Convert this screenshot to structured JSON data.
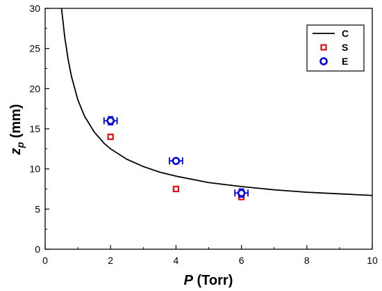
{
  "chart_data": {
    "type": "scatter",
    "xlabel_symbol": "P",
    "xlabel_unit": " (Torr)",
    "ylabel_symbol": "z",
    "ylabel_subscript": "p",
    "ylabel_unit": " (mm)",
    "xlim": [
      0,
      10
    ],
    "ylim": [
      0,
      30
    ],
    "x_ticks": [
      0,
      2,
      4,
      6,
      8,
      10
    ],
    "y_ticks": [
      0,
      5,
      10,
      15,
      20,
      25,
      30
    ],
    "x_tick_labels": [
      "0",
      "2",
      "4",
      "6",
      "8",
      "10"
    ],
    "y_tick_labels": [
      "0",
      "5",
      "10",
      "15",
      "20",
      "25",
      "30"
    ],
    "grid": false,
    "legend_position": "top-right",
    "series": [
      {
        "name": "C",
        "kind": "line",
        "color": "#000000",
        "x": [
          0.5,
          0.6,
          0.7,
          0.8,
          1.0,
          1.2,
          1.5,
          1.8,
          2.0,
          2.5,
          3.0,
          3.5,
          4.0,
          5.0,
          6.0,
          7.0,
          8.0,
          9.0,
          10.0
        ],
        "y": [
          30.0,
          26.4,
          23.7,
          21.6,
          18.6,
          16.6,
          14.6,
          13.2,
          12.5,
          11.2,
          10.3,
          9.6,
          9.1,
          8.3,
          7.8,
          7.4,
          7.1,
          6.9,
          6.7
        ]
      },
      {
        "name": "S",
        "kind": "square",
        "color": "#e01010",
        "x": [
          2,
          4,
          6
        ],
        "y": [
          14,
          7.5,
          6.5
        ]
      },
      {
        "name": "E",
        "kind": "circle",
        "color": "#0000dd",
        "x": [
          2,
          4,
          6
        ],
        "y": [
          16,
          11,
          7
        ],
        "xerr": [
          0.2,
          0.2,
          0.2
        ],
        "yerr": [
          0.5,
          0.3,
          0.5
        ]
      }
    ]
  }
}
